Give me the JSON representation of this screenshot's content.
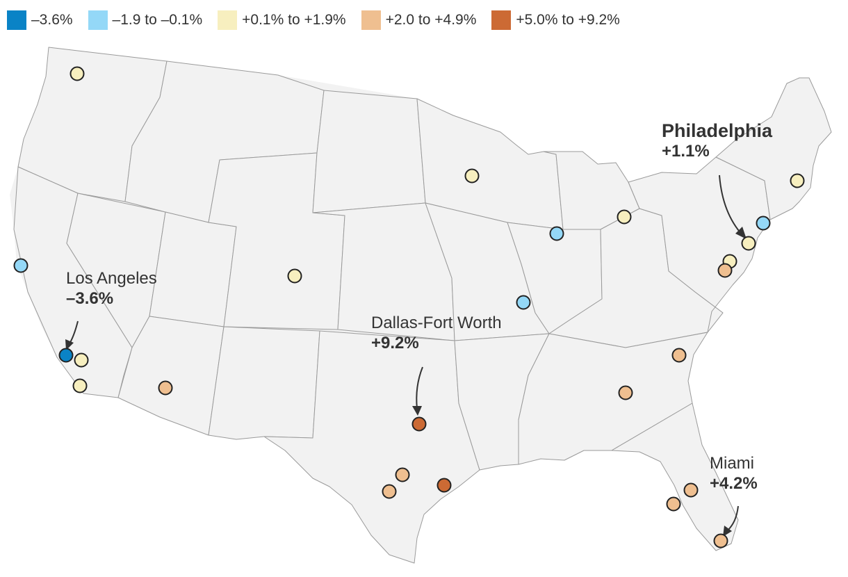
{
  "legend": [
    {
      "label": "–3.6%",
      "color": "#0a83c6"
    },
    {
      "label": "–1.9 to –0.1%",
      "color": "#94d8f7"
    },
    {
      "label": "+0.1% to +1.9%",
      "color": "#f7efbf"
    },
    {
      "label": "+2.0 to +4.9%",
      "color": "#efbf90"
    },
    {
      "label": "+5.0% to +9.2%",
      "color": "#cc6a34"
    }
  ],
  "annotations": {
    "philadelphia": {
      "name": "Philadelphia",
      "value": "+1.1%"
    },
    "los_angeles": {
      "name": "Los Angeles",
      "value": "–3.6%"
    },
    "dallas": {
      "name": "Dallas-Fort Worth",
      "value": "+9.2%"
    },
    "miami": {
      "name": "Miami",
      "value": "+4.2%"
    }
  },
  "cities": [
    {
      "category": 0
    },
    {
      "category": 1
    },
    {
      "category": 1
    },
    {
      "category": 1
    },
    {
      "category": 1
    },
    {
      "category": 2
    },
    {
      "category": 2
    },
    {
      "category": 2
    },
    {
      "category": 2
    },
    {
      "category": 2
    },
    {
      "category": 2
    },
    {
      "category": 2
    },
    {
      "category": 2
    },
    {
      "category": 2
    },
    {
      "category": 3
    },
    {
      "category": 3
    },
    {
      "category": 3
    },
    {
      "category": 3
    },
    {
      "category": 3
    },
    {
      "category": 3
    },
    {
      "category": 3
    },
    {
      "category": 3
    },
    {
      "category": 3
    },
    {
      "category": 4
    },
    {
      "category": 4
    }
  ]
}
